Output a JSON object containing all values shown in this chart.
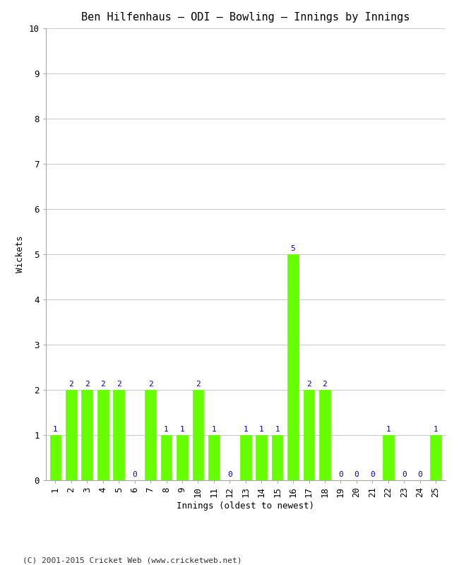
{
  "title": "Ben Hilfenhaus – ODI – Bowling – Innings by Innings",
  "xlabel": "Innings (oldest to newest)",
  "ylabel": "Wickets",
  "categories": [
    "1",
    "2",
    "3",
    "4",
    "5",
    "6",
    "7",
    "8",
    "9",
    "10",
    "11",
    "12",
    "13",
    "14",
    "15",
    "16",
    "17",
    "18",
    "19",
    "20",
    "21",
    "22",
    "23",
    "24",
    "25"
  ],
  "values": [
    1,
    2,
    2,
    2,
    2,
    0,
    2,
    1,
    1,
    2,
    1,
    0,
    1,
    1,
    1,
    5,
    2,
    2,
    0,
    0,
    0,
    1,
    0,
    0,
    1
  ],
  "bar_color": "#66FF00",
  "ylim": [
    0,
    10
  ],
  "yticks": [
    0,
    1,
    2,
    3,
    4,
    5,
    6,
    7,
    8,
    9,
    10
  ],
  "label_color": "#0000CC",
  "bg_color": "#ffffff",
  "grid_color": "#cccccc",
  "title_fontsize": 11,
  "axis_fontsize": 9,
  "tick_fontsize": 9,
  "label_fontsize": 8,
  "copyright": "(C) 2001-2015 Cricket Web (www.cricketweb.net)"
}
